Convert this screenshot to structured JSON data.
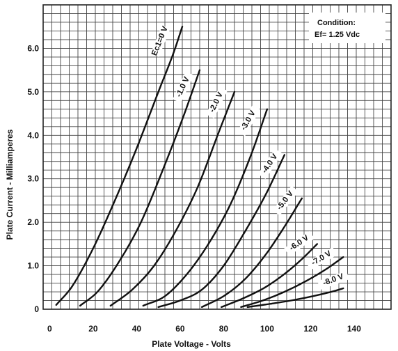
{
  "chart_data": {
    "type": "line",
    "xlabel": "Plate Voltage - Volts",
    "ylabel": "Plate Current - Milliamperes",
    "xlim": [
      -3,
      157
    ],
    "ylim": [
      0,
      7.0
    ],
    "x_ticks": [
      0,
      20,
      40,
      60,
      80,
      100,
      120,
      140
    ],
    "y_ticks": [
      0,
      1.0,
      2.0,
      3.0,
      4.0,
      5.0,
      6.0
    ],
    "x_tick_labels": [
      "0",
      "20",
      "40",
      "60",
      "80",
      "100",
      "120",
      "140"
    ],
    "y_tick_labels": [
      "0",
      "1.0",
      "2.0",
      "3.0",
      "4.0",
      "5.0",
      "6.0"
    ],
    "grid": true,
    "annotation": {
      "line1": "Condition:",
      "line2": "Ef= 1.25 Vdc"
    },
    "series": [
      {
        "name": "Ec1=0 V",
        "x": [
          3,
          10,
          20,
          30,
          40,
          50,
          57,
          61
        ],
        "y": [
          0.1,
          0.5,
          1.4,
          2.5,
          3.7,
          5.0,
          5.9,
          6.5
        ]
      },
      {
        "name": "-1.0 V",
        "x": [
          14,
          22,
          32,
          42,
          52,
          62,
          69
        ],
        "y": [
          0.08,
          0.4,
          1.1,
          2.0,
          3.2,
          4.5,
          5.5
        ]
      },
      {
        "name": "-2.0 V",
        "x": [
          28,
          38,
          48,
          58,
          68,
          78,
          85
        ],
        "y": [
          0.08,
          0.45,
          1.0,
          1.8,
          2.8,
          4.1,
          5.0
        ]
      },
      {
        "name": "-3.0 V",
        "x": [
          43,
          53,
          63,
          73,
          83,
          93,
          100
        ],
        "y": [
          0.08,
          0.3,
          0.8,
          1.5,
          2.4,
          3.6,
          4.6
        ]
      },
      {
        "name": "-4.0 V",
        "x": [
          50,
          60,
          70,
          80,
          90,
          100,
          108
        ],
        "y": [
          0.05,
          0.2,
          0.45,
          1.0,
          1.8,
          2.7,
          3.55
        ]
      },
      {
        "name": "-5.0 V",
        "x": [
          70,
          80,
          90,
          100,
          108,
          116
        ],
        "y": [
          0.05,
          0.3,
          0.7,
          1.3,
          1.9,
          2.55
        ]
      },
      {
        "name": "-6.0 V",
        "x": [
          79,
          89,
          99,
          109,
          117,
          123
        ],
        "y": [
          0.05,
          0.25,
          0.5,
          0.85,
          1.2,
          1.5
        ]
      },
      {
        "name": "-7.0 V",
        "x": [
          88,
          98,
          108,
          118,
          128,
          135
        ],
        "y": [
          0.05,
          0.2,
          0.4,
          0.65,
          0.95,
          1.2
        ]
      },
      {
        "name": "-8.0 V",
        "x": [
          91,
          101,
          111,
          121,
          131,
          135
        ],
        "y": [
          0.05,
          0.12,
          0.2,
          0.3,
          0.42,
          0.48
        ]
      }
    ]
  }
}
